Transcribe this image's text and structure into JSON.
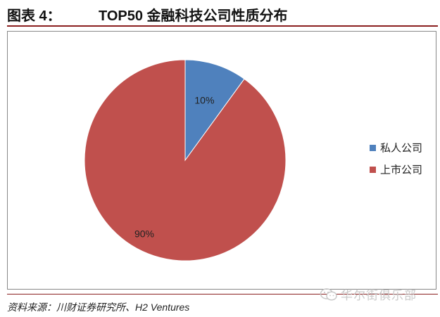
{
  "figure": {
    "label": "图表 4：",
    "title": "TOP50 金融科技公司性质分布"
  },
  "chart_data": {
    "type": "pie",
    "categories": [
      "私人公司",
      "上市公司"
    ],
    "values": [
      10,
      90
    ],
    "data_labels": [
      "10%",
      "90%"
    ],
    "colors": [
      "#4f81bd",
      "#c0504d"
    ],
    "legend_position": "right",
    "start_angle": "12 o'clock, clockwise"
  },
  "source": "资料来源：川财证券研究所、H2 Ventures",
  "watermark": {
    "text": "华尔街俱乐部",
    "icon": "wechat-icon"
  }
}
